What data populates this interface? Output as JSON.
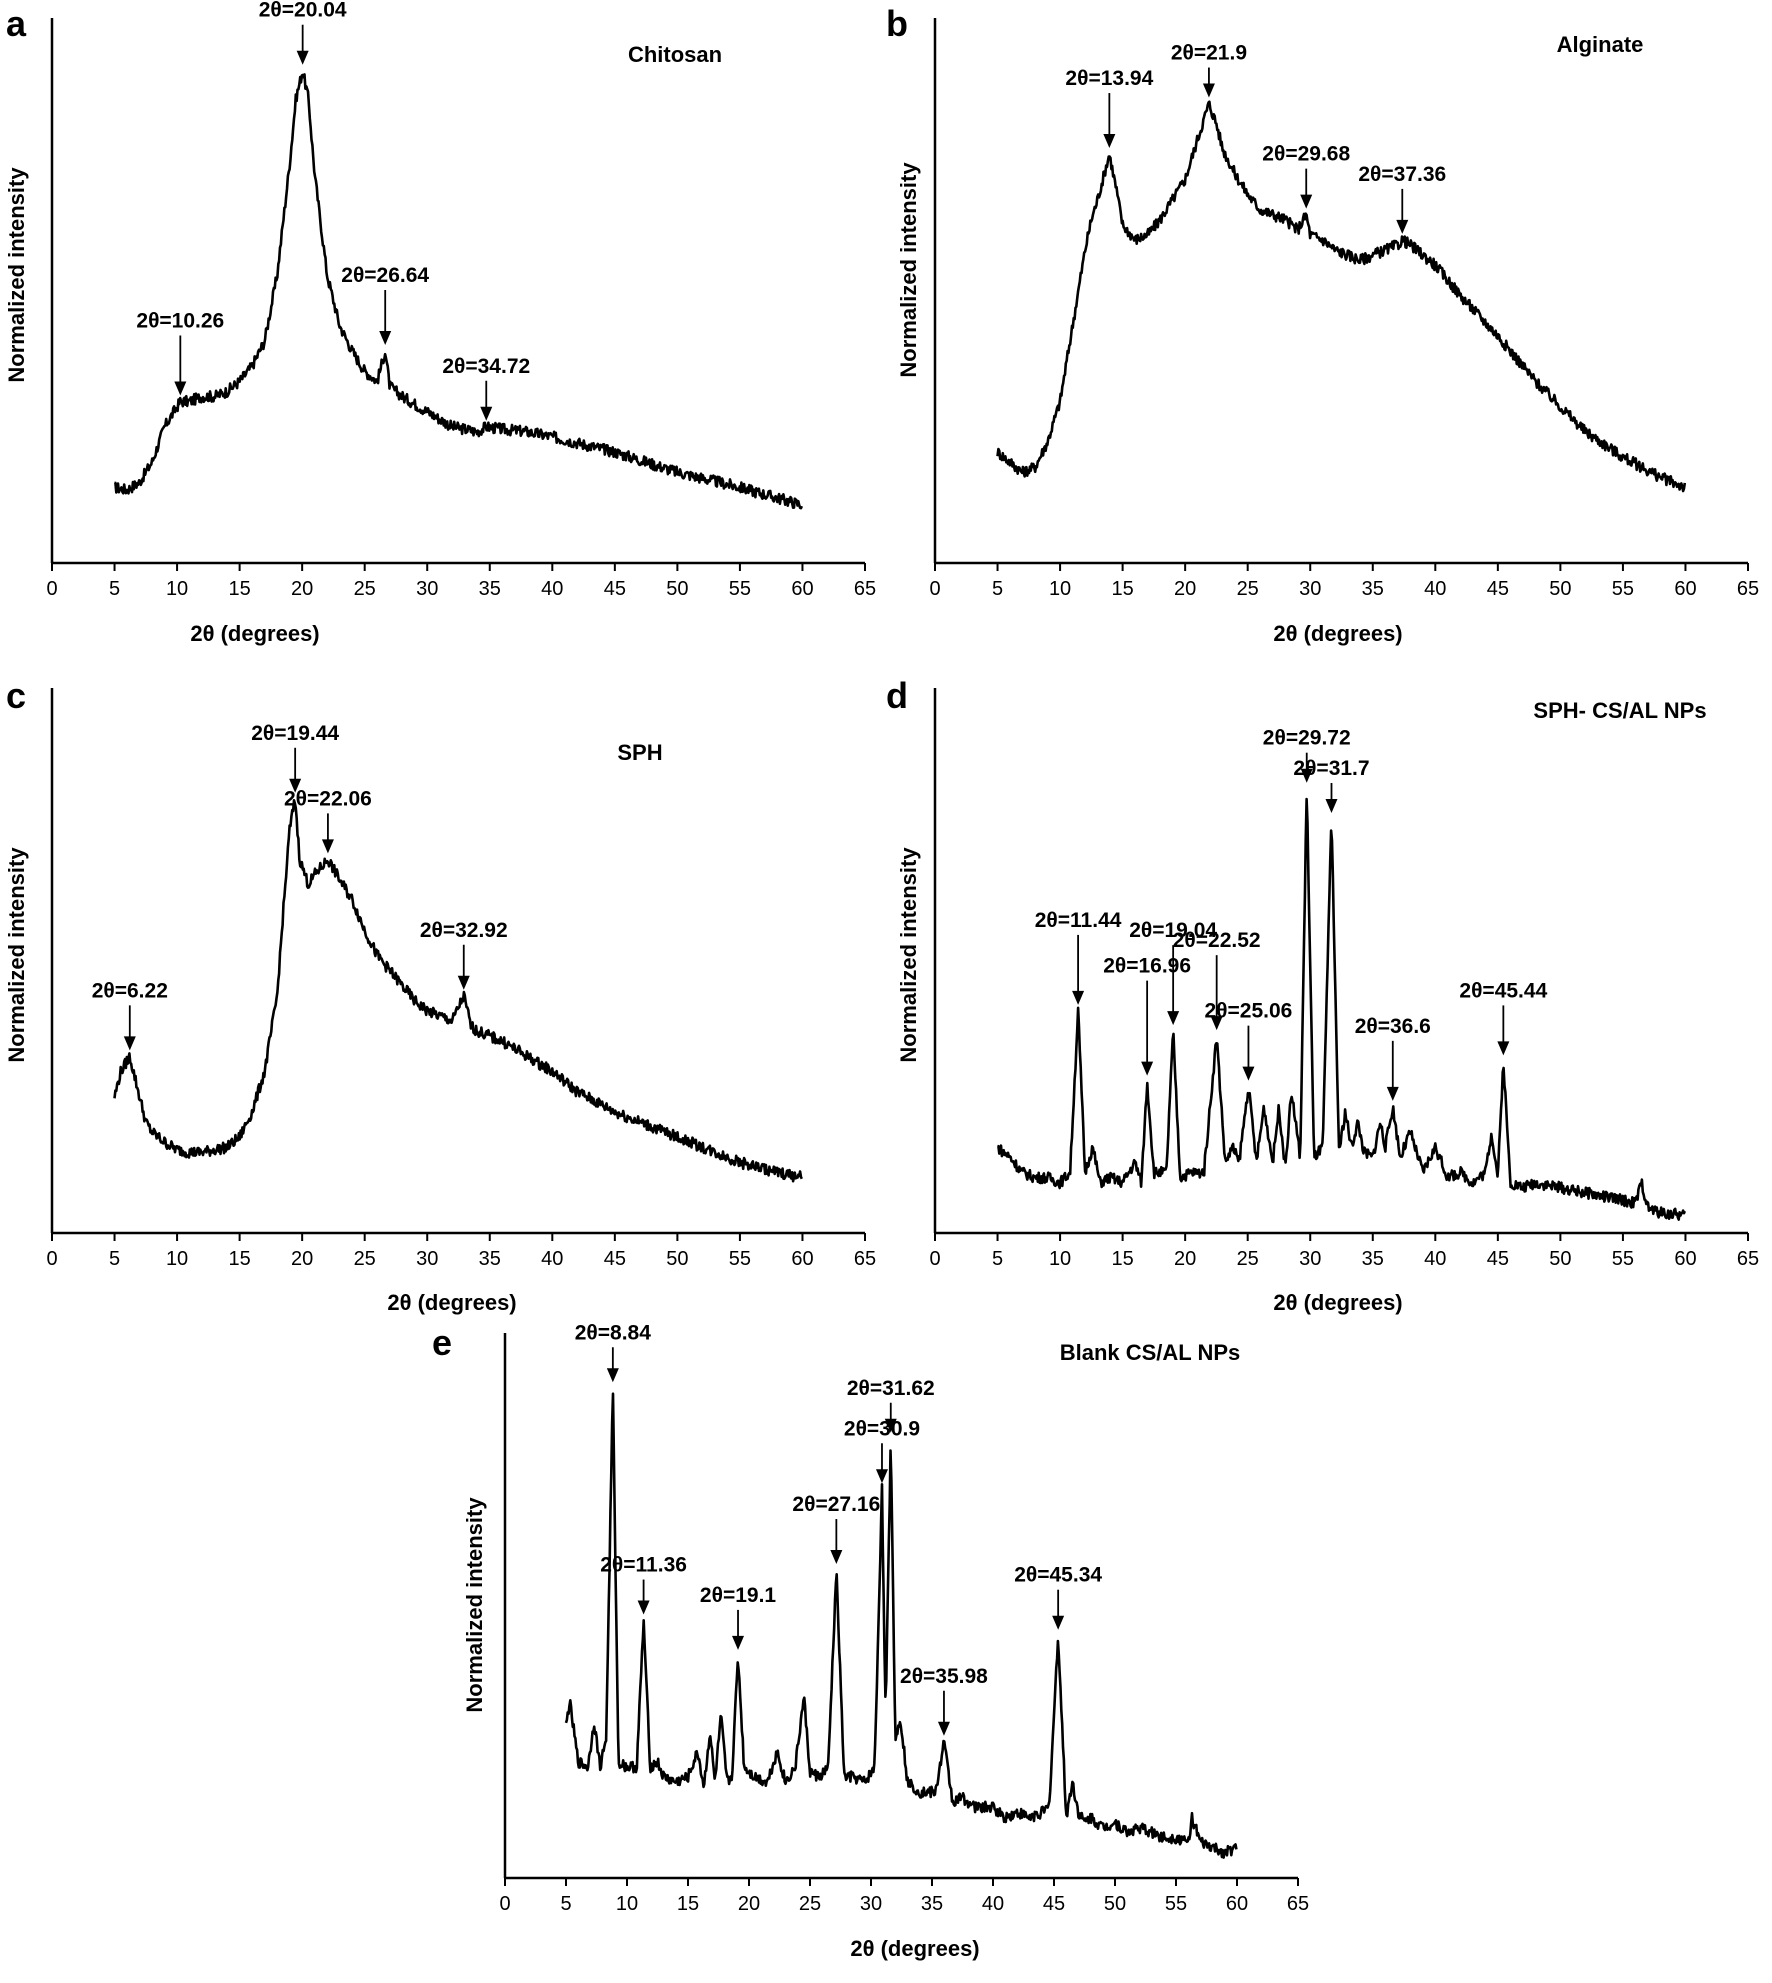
{
  "figure": {
    "panels": [
      {
        "letter": "a",
        "name": "Chitosan"
      },
      {
        "letter": "b",
        "name": "Alginate"
      },
      {
        "letter": "c",
        "name": "SPH"
      },
      {
        "letter": "d",
        "name": "SPH- CS/AL NPs"
      },
      {
        "letter": "e",
        "name": "Blank CS/AL NPs"
      }
    ]
  },
  "chart_data": [
    {
      "type": "line",
      "panel": "a",
      "title": "Chitosan",
      "xlabel": "2θ (degrees)",
      "ylabel": "Normalized intensity",
      "xlim": [
        0,
        65
      ],
      "ylim": [
        0,
        1
      ],
      "xticks": [
        "0",
        "5",
        "10",
        "15",
        "20",
        "25",
        "30",
        "35",
        "40",
        "45",
        "50",
        "55",
        "60",
        "65"
      ],
      "series": [
        {
          "x": [
            5,
            6,
            7,
            8,
            9,
            10,
            10.26,
            11,
            12,
            13,
            14,
            15,
            16,
            17,
            18,
            19,
            19.5,
            20.04,
            20.5,
            21,
            22,
            23,
            24,
            25,
            26,
            26.64,
            27,
            28,
            30,
            32,
            34,
            34.72,
            36,
            38,
            40,
            45,
            50,
            55,
            60
          ],
          "values": [
            0.13,
            0.125,
            0.14,
            0.18,
            0.25,
            0.29,
            0.3,
            0.3,
            0.31,
            0.31,
            0.32,
            0.34,
            0.37,
            0.42,
            0.55,
            0.77,
            0.9,
            0.955,
            0.9,
            0.75,
            0.55,
            0.45,
            0.4,
            0.36,
            0.34,
            0.4,
            0.33,
            0.31,
            0.28,
            0.25,
            0.24,
            0.25,
            0.245,
            0.24,
            0.23,
            0.2,
            0.16,
            0.13,
            0.095
          ]
        }
      ],
      "peaks": [
        {
          "label": "2θ=10.26",
          "x": 10.26
        },
        {
          "label": "2θ=20.04",
          "x": 20.04
        },
        {
          "label": "2θ=26.64",
          "x": 26.64
        },
        {
          "label": "2θ=34.72",
          "x": 34.72
        }
      ]
    },
    {
      "type": "line",
      "panel": "b",
      "title": "Alginate",
      "xlabel": "2θ (degrees)",
      "ylabel": "Normalized intensity",
      "xlim": [
        0,
        65
      ],
      "ylim": [
        0,
        1
      ],
      "xticks": [
        "0",
        "5",
        "10",
        "15",
        "20",
        "25",
        "30",
        "35",
        "40",
        "45",
        "50",
        "55",
        "60",
        "65"
      ],
      "series": [
        {
          "x": [
            5,
            6,
            7,
            8,
            9,
            10,
            11,
            12,
            12.5,
            13,
            13.94,
            14.5,
            15,
            16,
            17,
            18,
            19,
            20,
            21,
            21.9,
            22.5,
            23,
            24,
            25,
            26,
            27,
            28,
            29,
            29.68,
            30,
            31,
            32,
            33,
            34,
            35,
            36,
            37,
            37.36,
            38,
            40,
            42,
            45,
            48,
            50,
            52,
            55,
            58,
            60
          ],
          "values": [
            0.2,
            0.18,
            0.16,
            0.17,
            0.22,
            0.3,
            0.45,
            0.6,
            0.66,
            0.7,
            0.79,
            0.72,
            0.65,
            0.62,
            0.63,
            0.66,
            0.7,
            0.74,
            0.82,
            0.89,
            0.85,
            0.8,
            0.75,
            0.71,
            0.68,
            0.67,
            0.66,
            0.64,
            0.67,
            0.63,
            0.62,
            0.6,
            0.59,
            0.58,
            0.59,
            0.6,
            0.61,
            0.62,
            0.61,
            0.57,
            0.51,
            0.43,
            0.34,
            0.29,
            0.24,
            0.19,
            0.15,
            0.13
          ]
        }
      ],
      "peaks": [
        {
          "label": "2θ=13.94",
          "x": 13.94
        },
        {
          "label": "2θ=21.9",
          "x": 21.9
        },
        {
          "label": "2θ=29.68",
          "x": 29.68
        },
        {
          "label": "2θ=37.36",
          "x": 37.36
        }
      ]
    },
    {
      "type": "line",
      "panel": "c",
      "title": "SPH",
      "xlabel": "2θ (degrees)",
      "ylabel": "Normalized intensity",
      "xlim": [
        0,
        65
      ],
      "ylim": [
        0,
        1
      ],
      "xticks": [
        "0",
        "5",
        "10",
        "15",
        "20",
        "25",
        "30",
        "35",
        "40",
        "45",
        "50",
        "55",
        "60",
        "65"
      ],
      "series": [
        {
          "x": [
            5,
            5.5,
            6.22,
            7,
            7.5,
            8,
            9,
            10,
            11,
            12,
            13,
            14,
            15,
            16,
            17,
            18,
            18.5,
            19,
            19.44,
            19.8,
            20.5,
            21,
            22.06,
            23,
            24,
            25,
            26,
            27,
            28,
            29,
            30,
            31,
            32,
            32.92,
            33.5,
            34,
            35,
            36,
            38,
            40,
            42,
            45,
            48,
            50,
            52,
            55,
            58,
            60
          ],
          "values": [
            0.25,
            0.3,
            0.33,
            0.25,
            0.2,
            0.18,
            0.16,
            0.145,
            0.14,
            0.14,
            0.145,
            0.15,
            0.17,
            0.22,
            0.3,
            0.45,
            0.62,
            0.78,
            0.84,
            0.72,
            0.67,
            0.69,
            0.72,
            0.68,
            0.64,
            0.58,
            0.53,
            0.5,
            0.47,
            0.44,
            0.42,
            0.41,
            0.4,
            0.45,
            0.39,
            0.38,
            0.37,
            0.36,
            0.33,
            0.3,
            0.26,
            0.22,
            0.19,
            0.17,
            0.15,
            0.12,
            0.1,
            0.09
          ]
        }
      ],
      "peaks": [
        {
          "label": "2θ=6.22",
          "x": 6.22
        },
        {
          "label": "2θ=19.44",
          "x": 19.44
        },
        {
          "label": "2θ=22.06",
          "x": 22.06
        },
        {
          "label": "2θ=32.92",
          "x": 32.92
        }
      ]
    },
    {
      "type": "line",
      "panel": "d",
      "title": "SPH- CS/AL NPs",
      "xlabel": "2θ (degrees)",
      "ylabel": "Normalized intensity",
      "xlim": [
        0,
        65
      ],
      "ylim": [
        0,
        1
      ],
      "xticks": [
        "0",
        "5",
        "10",
        "15",
        "20",
        "25",
        "30",
        "35",
        "40",
        "45",
        "50",
        "55",
        "60",
        "65"
      ],
      "series": [
        {
          "x": [
            5,
            6,
            7,
            8,
            9,
            10,
            10.8,
            11.44,
            12,
            12.6,
            13.2,
            14,
            15,
            16,
            16.5,
            16.96,
            17.5,
            18.5,
            19.04,
            19.6,
            20.5,
            21.5,
            22.52,
            23.2,
            23.8,
            24.3,
            25.06,
            25.7,
            26.3,
            27,
            27.5,
            28,
            28.5,
            29.2,
            29.72,
            30.3,
            31,
            31.7,
            32.3,
            32.8,
            33.3,
            33.8,
            34.3,
            35,
            35.6,
            36,
            36.6,
            37.2,
            38,
            39,
            40,
            41,
            42,
            43,
            44,
            44.5,
            45,
            45.44,
            46,
            47,
            48,
            50,
            52,
            54,
            56,
            56.5,
            57,
            58,
            60
          ],
          "values": [
            0.15,
            0.13,
            0.1,
            0.09,
            0.09,
            0.08,
            0.1,
            0.42,
            0.1,
            0.15,
            0.08,
            0.09,
            0.08,
            0.12,
            0.08,
            0.28,
            0.1,
            0.1,
            0.38,
            0.09,
            0.1,
            0.1,
            0.37,
            0.12,
            0.15,
            0.12,
            0.27,
            0.12,
            0.23,
            0.12,
            0.23,
            0.11,
            0.26,
            0.13,
            0.86,
            0.13,
            0.15,
            0.8,
            0.14,
            0.22,
            0.15,
            0.2,
            0.14,
            0.13,
            0.2,
            0.15,
            0.23,
            0.13,
            0.18,
            0.1,
            0.15,
            0.09,
            0.1,
            0.08,
            0.1,
            0.18,
            0.09,
            0.32,
            0.08,
            0.07,
            0.08,
            0.07,
            0.06,
            0.05,
            0.04,
            0.08,
            0.03,
            0.02,
            0.015
          ]
        }
      ],
      "peaks": [
        {
          "label": "2θ=11.44",
          "x": 11.44
        },
        {
          "label": "2θ=16.96",
          "x": 16.96
        },
        {
          "label": "2θ=19.04",
          "x": 19.04
        },
        {
          "label": "2θ=22.52",
          "x": 22.52
        },
        {
          "label": "2θ=25.06",
          "x": 25.06
        },
        {
          "label": "2θ=29.72",
          "x": 29.72
        },
        {
          "label": "2θ=31.7",
          "x": 31.7
        },
        {
          "label": "2θ=36.6",
          "x": 36.6
        },
        {
          "label": "2θ=45.44",
          "x": 45.44
        }
      ]
    },
    {
      "type": "line",
      "panel": "e",
      "title": "Blank CS/AL NPs",
      "xlabel": "2θ (degrees)",
      "ylabel": "Normalized intensity",
      "xlim": [
        0,
        65
      ],
      "ylim": [
        0,
        1
      ],
      "xticks": [
        "0",
        "5",
        "10",
        "15",
        "20",
        "25",
        "30",
        "35",
        "40",
        "45",
        "50",
        "55",
        "60",
        "65"
      ],
      "series": [
        {
          "x": [
            5,
            5.3,
            6,
            6.8,
            7.3,
            7.8,
            8.3,
            8.84,
            9.3,
            10,
            10.8,
            11.36,
            11.9,
            12.5,
            13,
            14,
            15,
            15.8,
            16.3,
            16.8,
            17.2,
            17.7,
            18.2,
            18.6,
            19.1,
            19.6,
            20.5,
            21.5,
            22.3,
            23,
            23.8,
            24.5,
            25,
            25.8,
            26.5,
            27.16,
            27.8,
            28.5,
            29.5,
            30.3,
            30.9,
            31.2,
            31.62,
            32,
            32.4,
            33,
            34,
            35.3,
            35.98,
            36.7,
            37.5,
            38.5,
            40,
            41,
            42,
            43,
            44,
            44.6,
            45.34,
            46,
            46.5,
            47,
            47.5,
            48,
            49,
            50,
            51,
            52,
            53,
            54,
            55,
            56,
            56.3,
            57,
            58,
            59,
            60
          ],
          "values": [
            0.28,
            0.33,
            0.21,
            0.2,
            0.29,
            0.2,
            0.26,
            0.95,
            0.21,
            0.2,
            0.2,
            0.49,
            0.2,
            0.21,
            0.18,
            0.17,
            0.18,
            0.23,
            0.16,
            0.27,
            0.17,
            0.3,
            0.17,
            0.18,
            0.42,
            0.2,
            0.18,
            0.17,
            0.23,
            0.17,
            0.2,
            0.34,
            0.19,
            0.18,
            0.2,
            0.59,
            0.18,
            0.18,
            0.17,
            0.2,
            0.75,
            0.3,
            0.85,
            0.25,
            0.3,
            0.17,
            0.15,
            0.15,
            0.25,
            0.13,
            0.14,
            0.12,
            0.12,
            0.1,
            0.11,
            0.1,
            0.11,
            0.12,
            0.46,
            0.1,
            0.17,
            0.11,
            0.09,
            0.1,
            0.08,
            0.09,
            0.07,
            0.08,
            0.07,
            0.06,
            0.06,
            0.05,
            0.1,
            0.05,
            0.04,
            0.03,
            0.04
          ]
        }
      ],
      "peaks": [
        {
          "label": "2θ=8.84",
          "x": 8.84
        },
        {
          "label": "2θ=11.36",
          "x": 11.36
        },
        {
          "label": "2θ=19.1",
          "x": 19.1
        },
        {
          "label": "2θ=27.16",
          "x": 27.16
        },
        {
          "label": "2θ=30.9",
          "x": 30.9
        },
        {
          "label": "2θ=31.62",
          "x": 31.62
        },
        {
          "label": "2θ=35.98",
          "x": 35.98
        },
        {
          "label": "2θ=45.34",
          "x": 45.34
        }
      ]
    }
  ]
}
